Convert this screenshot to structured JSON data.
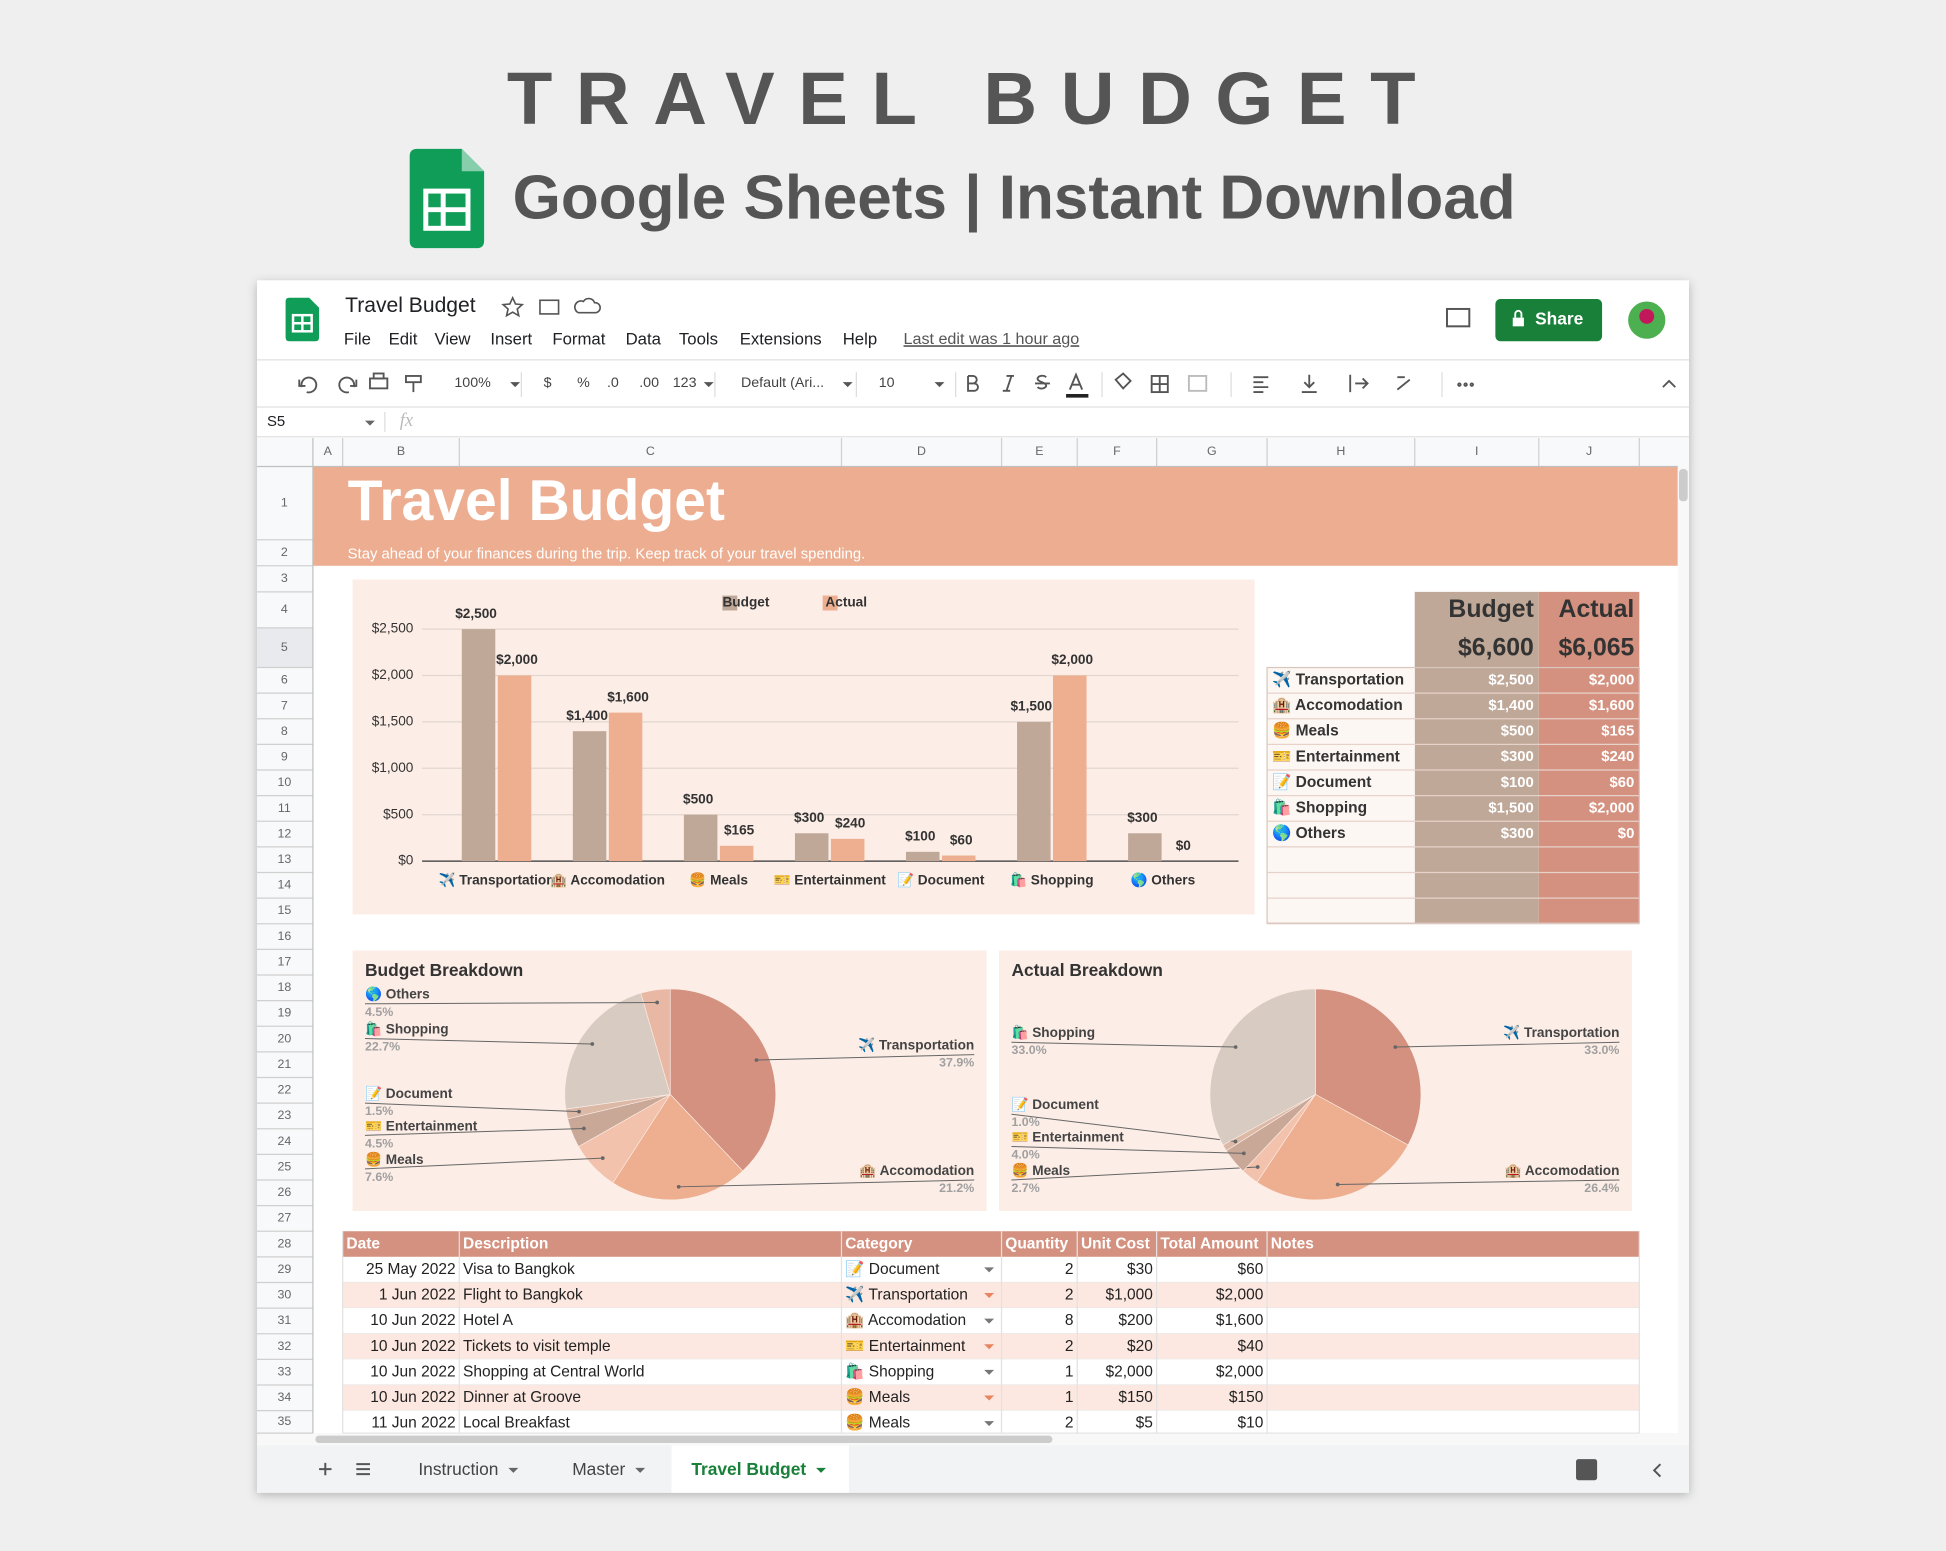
{
  "header": {
    "title": "TRAVEL BUDGET",
    "subtitle": "Google Sheets | Instant Download"
  },
  "app": {
    "doc_title": "Travel Budget",
    "menu": [
      "File",
      "Edit",
      "View",
      "Insert",
      "Format",
      "Data",
      "Tools",
      "Extensions",
      "Help"
    ],
    "last_edit": "Last edit was 1 hour ago",
    "share": "Share",
    "toolbar": [
      "100%",
      "$",
      "%",
      ".0",
      ".00",
      "123",
      "Default (Ari...",
      "10"
    ],
    "cell_ref": "S5",
    "fx": "fx",
    "columns": [
      "A",
      "B",
      "C",
      "D",
      "E",
      "F",
      "G",
      "H",
      "I",
      "J"
    ],
    "rows": [
      1,
      2,
      3,
      4,
      5,
      6,
      7,
      8,
      9,
      10,
      11,
      12,
      13,
      14,
      15,
      16,
      17,
      18,
      19,
      20,
      21,
      22,
      23,
      24,
      25,
      26,
      27,
      28,
      29,
      30,
      31,
      32,
      33,
      34,
      35
    ]
  },
  "sheet": {
    "title": "Travel Budget",
    "subtitle": "Stay ahead of your finances during the trip. Keep track of your travel spending."
  },
  "chart_data": [
    {
      "type": "bar",
      "categories": [
        "✈️ Transportation",
        "🏨 Accomodation",
        "🍔 Meals",
        "🎫 Entertainment",
        "📝 Document",
        "🛍️ Shopping",
        "🌎 Others"
      ],
      "series": [
        {
          "name": "Budget",
          "color": "#bfa898",
          "values": [
            2500,
            1400,
            500,
            300,
            100,
            1500,
            300
          ],
          "value_labels": [
            "$2,500",
            "$1,400",
            "$500",
            "$300",
            "$100",
            "$1,500",
            "$300"
          ]
        },
        {
          "name": "Actual",
          "color": "#eeae90",
          "values": [
            2000,
            1600,
            165,
            240,
            60,
            2000,
            0
          ],
          "value_labels": [
            "$2,000",
            "$1,600",
            "$165",
            "$240",
            "$60",
            "$2,000",
            "$0"
          ]
        }
      ],
      "ylim": [
        0,
        2500
      ],
      "yticks": [
        {
          "value": 0,
          "label": "$0"
        },
        {
          "value": 500,
          "label": "$500"
        },
        {
          "value": 1000,
          "label": "$1,000"
        },
        {
          "value": 1500,
          "label": "$1,500"
        },
        {
          "value": 2000,
          "label": "$2,000"
        },
        {
          "value": 2500,
          "label": "$2,500"
        }
      ],
      "grid": true,
      "legend": "top"
    },
    {
      "type": "pie",
      "title": "Budget Breakdown",
      "categories": [
        "✈️ Transportation",
        "🏨 Accomodation",
        "🍔 Meals",
        "🎫 Entertainment",
        "📝 Document",
        "🛍️ Shopping",
        "🌎 Others"
      ],
      "values": [
        37.9,
        21.2,
        7.6,
        4.5,
        1.5,
        22.7,
        4.5
      ],
      "value_labels": [
        "37.9%",
        "21.2%",
        "7.6%",
        "4.5%",
        "1.5%",
        "22.7%",
        "4.5%"
      ],
      "colors": [
        "#d4917f",
        "#eeae90",
        "#f3c2ac",
        "#c9a898",
        "#dcb8a6",
        "#d8cbc1",
        "#e9b8a5"
      ]
    },
    {
      "type": "pie",
      "title": "Actual Breakdown",
      "categories": [
        "✈️ Transportation",
        "🏨 Accomodation",
        "🍔 Meals",
        "🎫 Entertainment",
        "📝 Document",
        "🛍️ Shopping"
      ],
      "values": [
        33.0,
        26.4,
        2.7,
        4.0,
        1.0,
        33.0
      ],
      "value_labels": [
        "33.0%",
        "26.4%",
        "2.7%",
        "4.0%",
        "1.0%",
        "33.0%"
      ],
      "colors": [
        "#d4917f",
        "#eeae90",
        "#f3c2ac",
        "#c9a898",
        "#dcb8a6",
        "#d8cbc1"
      ]
    }
  ],
  "summary": {
    "headers": [
      "Budget",
      "Actual"
    ],
    "totals": [
      "$6,600",
      "$6,065"
    ],
    "rows": [
      [
        "✈️ Transportation",
        "$2,500",
        "$2,000"
      ],
      [
        "🏨 Accomodation",
        "$1,400",
        "$1,600"
      ],
      [
        "🍔 Meals",
        "$500",
        "$165"
      ],
      [
        "🎫 Entertainment",
        "$300",
        "$240"
      ],
      [
        "📝 Document",
        "$100",
        "$60"
      ],
      [
        "🛍️ Shopping",
        "$1,500",
        "$2,000"
      ],
      [
        "🌎 Others",
        "$300",
        "$0"
      ]
    ]
  },
  "transactions": {
    "headers": [
      "Date",
      "Description",
      "Category",
      "Quantity",
      "Unit Cost",
      "Total Amount",
      "Notes"
    ],
    "rows": [
      [
        "25 May 2022",
        "Visa to Bangkok",
        "📝 Document",
        2,
        "$30",
        "$60"
      ],
      [
        "1 Jun 2022",
        "Flight to Bangkok",
        "✈️ Transportation",
        2,
        "$1,000",
        "$2,000"
      ],
      [
        "10 Jun 2022",
        "Hotel A",
        "🏨 Accomodation",
        8,
        "$200",
        "$1,600"
      ],
      [
        "10 Jun 2022",
        "Tickets to visit temple",
        "🎫 Entertainment",
        2,
        "$20",
        "$40"
      ],
      [
        "10 Jun 2022",
        "Shopping at Central World",
        "🛍️ Shopping",
        1,
        "$2,000",
        "$2,000"
      ],
      [
        "10 Jun 2022",
        "Dinner at Groove",
        "🍔 Meals",
        1,
        "$150",
        "$150"
      ],
      [
        "11 Jun 2022",
        "Local Breakfast",
        "🍔 Meals",
        2,
        "$5",
        "$10"
      ]
    ]
  },
  "tabs": [
    "Instruction",
    "Master",
    "Travel Budget"
  ]
}
